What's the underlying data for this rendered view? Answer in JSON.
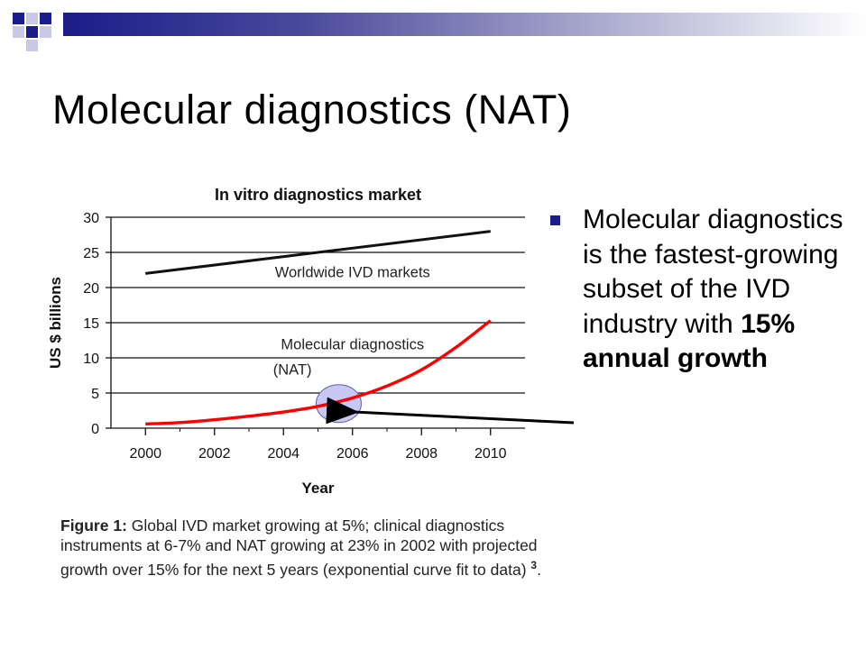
{
  "slide": {
    "title": "Molecular diagnostics (NAT)"
  },
  "bullet": {
    "text_regular_1": "Molecular diagnostics is the fastest-growing subset of the IVD industry with ",
    "text_bold": "15% annual growth"
  },
  "figure_caption": {
    "label": "Figure 1:",
    "text": " Global IVD market growing at 5%; clinical diagnostics instruments at 6-7% and NAT growing at 23% in 2002 with projected growth over 15% for the next 5 years (exponential curve fit to data) ",
    "superscript": "3",
    "end": "."
  },
  "colors": {
    "series_worldwide": "#111111",
    "series_molecular": "#ff0000",
    "highlight_fill": "#c8c8f4",
    "accent": "#1c1c8a"
  },
  "chart_data": {
    "type": "line",
    "title": "In vitro diagnostics market",
    "xlabel": "Year",
    "ylabel": "US $ billions",
    "xlim": [
      1999,
      2011
    ],
    "ylim": [
      0,
      30
    ],
    "x_ticks": [
      "2000",
      "2002",
      "2004",
      "2006",
      "2008",
      "2010"
    ],
    "y_ticks": [
      "0",
      "5",
      "10",
      "15",
      "20",
      "25",
      "30"
    ],
    "grid": true,
    "series": [
      {
        "name": "Worldwide IVD markets",
        "x": [
          2000,
          2010
        ],
        "y": [
          22,
          28
        ]
      },
      {
        "name": "Molecular diagnostics (NAT)",
        "x": [
          2000,
          2001,
          2002,
          2003,
          2004,
          2005,
          2006,
          2007,
          2008,
          2009,
          2010
        ],
        "y": [
          0.6,
          0.8,
          1.2,
          1.7,
          2.3,
          3.1,
          4.3,
          6.0,
          8.3,
          11.5,
          15.3
        ]
      }
    ],
    "annotations": [
      {
        "text_line1": "Worldwide IVD markets",
        "x": 2006,
        "y": 21.5
      },
      {
        "text_line1": "Molecular diagnostics",
        "text_line2": "(NAT)",
        "x": 2006,
        "y": 11.2
      }
    ],
    "highlight": {
      "x": 2005.6,
      "y": 3.5
    }
  }
}
